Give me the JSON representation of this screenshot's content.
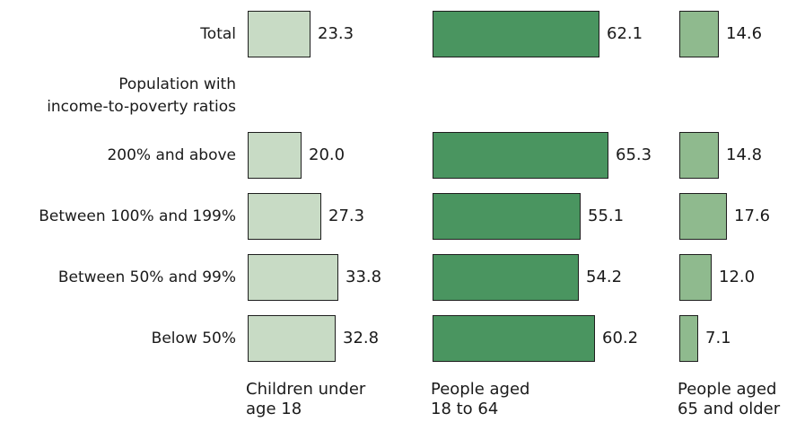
{
  "chart_data": {
    "type": "bar",
    "title": "",
    "group_label_lines": [
      "Population with",
      "income-to-poverty ratios"
    ],
    "rows": [
      "Total",
      "200% and above",
      "Between 100% and 199%",
      "Between 50% and 99%",
      "Below 50%"
    ],
    "series": [
      {
        "label_lines": [
          "Children under",
          "age 18"
        ],
        "color": "#c8dbc5",
        "values": [
          23.3,
          20.0,
          27.3,
          33.8,
          32.8
        ]
      },
      {
        "label_lines": [
          "People aged",
          "18 to 64"
        ],
        "color": "#4a9560",
        "values": [
          62.1,
          65.3,
          55.1,
          54.2,
          60.2
        ]
      },
      {
        "label_lines": [
          "People aged",
          "65 and older"
        ],
        "color": "#8fba8e",
        "values": [
          14.6,
          14.8,
          17.6,
          12.0,
          7.1
        ]
      }
    ],
    "value_format": "one decimal"
  }
}
